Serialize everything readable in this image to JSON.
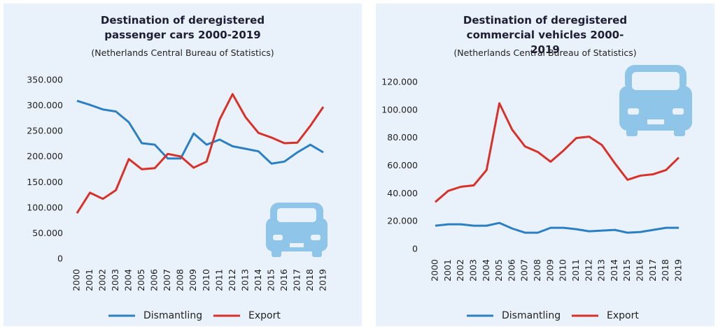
{
  "chart_data": [
    {
      "type": "line",
      "title": "Destination of deregistered passenger cars 2000-2019",
      "subtitle": "(Netherlands Central Bureau of Statistics)",
      "categories": [
        "2000",
        "2001",
        "2002",
        "2003",
        "2004",
        "2005",
        "2006",
        "2007",
        "2008",
        "2009",
        "2010",
        "2011",
        "2012",
        "2013",
        "2014",
        "2015",
        "2016",
        "2017",
        "2018",
        "2019"
      ],
      "series": [
        {
          "name": "Dismantling",
          "color": "#2b7fc3",
          "values": [
            310000,
            302000,
            293000,
            289000,
            268000,
            227000,
            224000,
            197000,
            197000,
            246000,
            224000,
            234000,
            221000,
            216000,
            211000,
            187000,
            191000,
            209000,
            224000,
            209000
          ]
        },
        {
          "name": "Export",
          "color": "#d8312a",
          "values": [
            90000,
            130000,
            118000,
            135000,
            196000,
            176000,
            178000,
            206000,
            201000,
            179000,
            191000,
            273000,
            323000,
            278000,
            247000,
            238000,
            227000,
            228000,
            261000,
            298000
          ]
        }
      ],
      "ylim": [
        0,
        350000
      ],
      "yticks": [
        0,
        {
          "value": 50000,
          "label": "50.000"
        },
        {
          "value": 100000,
          "label": "100.000"
        },
        {
          "value": 150000,
          "label": "150.000"
        },
        {
          "value": 200000,
          "label": "200.000"
        },
        {
          "value": 250000,
          "label": "250.000"
        },
        {
          "value": 300000,
          "label": "300.000"
        },
        {
          "value": 350000,
          "label": "350.000"
        }
      ]
    },
    {
      "type": "line",
      "title": "Destination of deregistered commercial vehicles 2000-2019",
      "subtitle": "(Netherlands Central Bureau of Statistics)",
      "categories": [
        "2000",
        "2001",
        "2002",
        "2003",
        "2004",
        "2005",
        "2006",
        "2007",
        "2008",
        "2009",
        "2010",
        "2011",
        "2012",
        "2013",
        "2014",
        "2015",
        "2016",
        "2017",
        "2018",
        "2019"
      ],
      "series": [
        {
          "name": "Dismantling",
          "color": "#2b7fc3",
          "values": [
            17000,
            18000,
            18000,
            17000,
            17000,
            19000,
            15000,
            12000,
            12000,
            15500,
            15500,
            14500,
            13000,
            13500,
            14000,
            12000,
            12500,
            14000,
            15500,
            15500
          ]
        },
        {
          "name": "Export",
          "color": "#d8312a",
          "values": [
            34000,
            42000,
            45000,
            46000,
            57000,
            105000,
            86000,
            74000,
            70000,
            63000,
            71000,
            80000,
            81000,
            75000,
            62000,
            50000,
            53000,
            54000,
            57000,
            66000
          ]
        }
      ],
      "ylim": [
        0,
        120000
      ],
      "yticks": [
        0,
        {
          "value": 20000,
          "label": "20.000"
        },
        {
          "value": 40000,
          "label": "40.000"
        },
        {
          "value": 60000,
          "label": "60.000"
        },
        {
          "value": 80000,
          "label": "80.000"
        },
        {
          "value": 100000,
          "label": "100.000"
        },
        {
          "value": 120000,
          "label": "120.000"
        }
      ]
    }
  ]
}
